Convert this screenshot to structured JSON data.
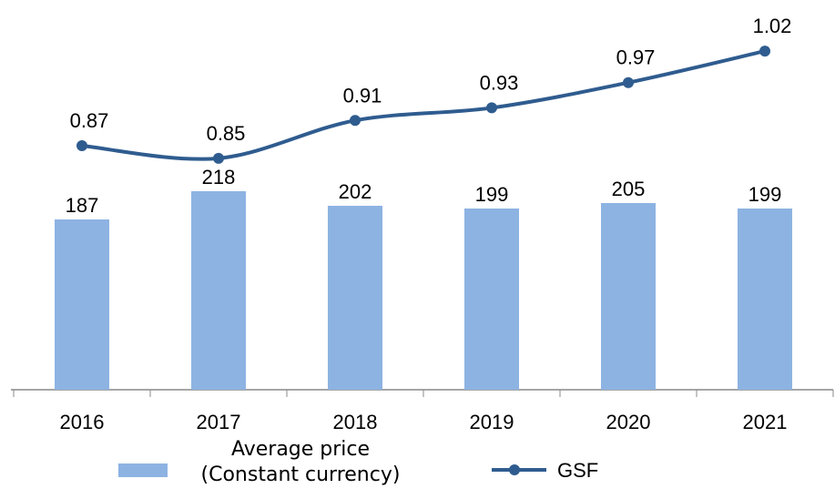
{
  "chart_data": {
    "type": "bar_line",
    "categories": [
      "2016",
      "2017",
      "2018",
      "2019",
      "2020",
      "2021"
    ],
    "series": [
      {
        "name": "Average price (Constant currency)",
        "type": "bar",
        "color": "#8db3e2",
        "values": [
          187,
          218,
          202,
          199,
          205,
          199
        ]
      },
      {
        "name": "GSF",
        "type": "line",
        "axis": "y2",
        "color": "#2f5c8f",
        "values": [
          0.87,
          0.85,
          0.91,
          0.93,
          0.97,
          1.02
        ]
      }
    ],
    "ylim": [
      0,
      428
    ],
    "y2lim": [
      0.483,
      1.101
    ],
    "legend": "bottom"
  }
}
